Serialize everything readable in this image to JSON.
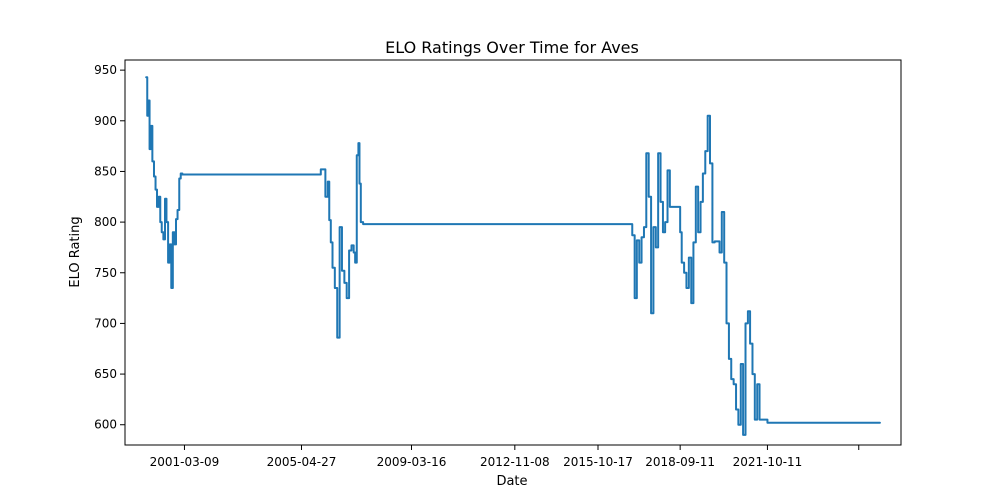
{
  "chart_data": {
    "type": "line",
    "title": "ELO Ratings Over Time for Aves",
    "xlabel": "Date",
    "ylabel": "ELO Rating",
    "x_tick_labels": [
      "2001-03-09",
      "2005-04-27",
      "2009-03-16",
      "2012-11-08",
      "2015-10-17",
      "2018-09-11",
      "2021-10-11",
      ""
    ],
    "y_ticks": [
      600,
      650,
      700,
      750,
      800,
      850,
      900,
      950
    ],
    "xlim": [
      "1999-02-01",
      "2026-06-30"
    ],
    "ylim": [
      580,
      960
    ],
    "grid": false,
    "legend": "none",
    "line_color": "#1f77b4",
    "series": [
      {
        "x": [
          "1999-11-01",
          "1999-11-15",
          "1999-12-01",
          "1999-12-15",
          "2000-01-01",
          "2000-01-20",
          "2000-02-10",
          "2000-03-01",
          "2000-03-20",
          "2000-04-10",
          "2000-05-01",
          "2000-05-20",
          "2000-06-10",
          "2000-07-01",
          "2000-07-20",
          "2000-08-10",
          "2000-09-01",
          "2000-09-20",
          "2000-10-10",
          "2000-11-01",
          "2000-11-20",
          "2000-12-10",
          "2001-01-01",
          "2001-01-20",
          "2001-02-10",
          "2001-03-01",
          "2001-03-20",
          "2001-04-10",
          "2001-04-20",
          "2001-05-01",
          "2001-05-20",
          "2005-04-27",
          "2005-09-01",
          "2006-01-01",
          "2006-03-01",
          "2006-04-01",
          "2006-04-20",
          "2006-05-10",
          "2006-06-01",
          "2006-07-01",
          "2006-08-01",
          "2006-09-01",
          "2006-10-01",
          "2006-11-01",
          "2006-12-01",
          "2007-01-01",
          "2007-02-01",
          "2007-03-01",
          "2007-03-20",
          "2007-04-10",
          "2007-05-01",
          "2007-05-15",
          "2007-06-01",
          "2007-07-01",
          "2009-03-16",
          "2012-11-08",
          "2015-10-17",
          "2016-11-01",
          "2017-01-01",
          "2017-02-01",
          "2017-03-01",
          "2017-04-01",
          "2017-05-01",
          "2017-06-01",
          "2017-07-01",
          "2017-08-01",
          "2017-09-01",
          "2017-10-01",
          "2017-11-01",
          "2017-12-01",
          "2018-01-01",
          "2018-02-01",
          "2018-03-01",
          "2018-04-01",
          "2018-05-01",
          "2018-06-01",
          "2018-07-01",
          "2018-08-01",
          "2018-09-11",
          "2018-10-01",
          "2018-11-01",
          "2018-12-01",
          "2019-01-01",
          "2019-02-01",
          "2019-03-01",
          "2019-04-01",
          "2019-05-01",
          "2019-06-01",
          "2019-07-01",
          "2019-08-01",
          "2019-09-01",
          "2019-10-01",
          "2019-11-01",
          "2019-12-01",
          "2020-01-01",
          "2020-02-01",
          "2020-03-01",
          "2020-04-01",
          "2020-05-01",
          "2020-06-01",
          "2020-07-01",
          "2020-08-01",
          "2020-09-01",
          "2020-10-01",
          "2020-11-01",
          "2020-12-01",
          "2021-01-01",
          "2021-02-01",
          "2021-03-01",
          "2021-04-01",
          "2021-05-01",
          "2021-06-01",
          "2021-07-01",
          "2021-10-11",
          "2025-10-01"
        ],
        "y": [
          943,
          905,
          920,
          872,
          895,
          860,
          845,
          832,
          815,
          825,
          800,
          790,
          783,
          823,
          800,
          760,
          778,
          735,
          790,
          778,
          803,
          812,
          843,
          848,
          847,
          847,
          847,
          847,
          847,
          847,
          847,
          847,
          847,
          852,
          825,
          840,
          802,
          780,
          755,
          735,
          686,
          795,
          752,
          740,
          725,
          772,
          777,
          770,
          760,
          866,
          878,
          838,
          800,
          798,
          798,
          798,
          798,
          798,
          787,
          725,
          782,
          760,
          785,
          795,
          868,
          825,
          710,
          795,
          775,
          868,
          820,
          790,
          800,
          851,
          815,
          815,
          815,
          815,
          790,
          760,
          750,
          735,
          765,
          720,
          780,
          835,
          790,
          820,
          848,
          870,
          905,
          858,
          780,
          781,
          781,
          770,
          810,
          760,
          700,
          665,
          645,
          640,
          615,
          600,
          660,
          590,
          700,
          712,
          680,
          650,
          605,
          640,
          605,
          602,
          602
        ]
      }
    ]
  }
}
